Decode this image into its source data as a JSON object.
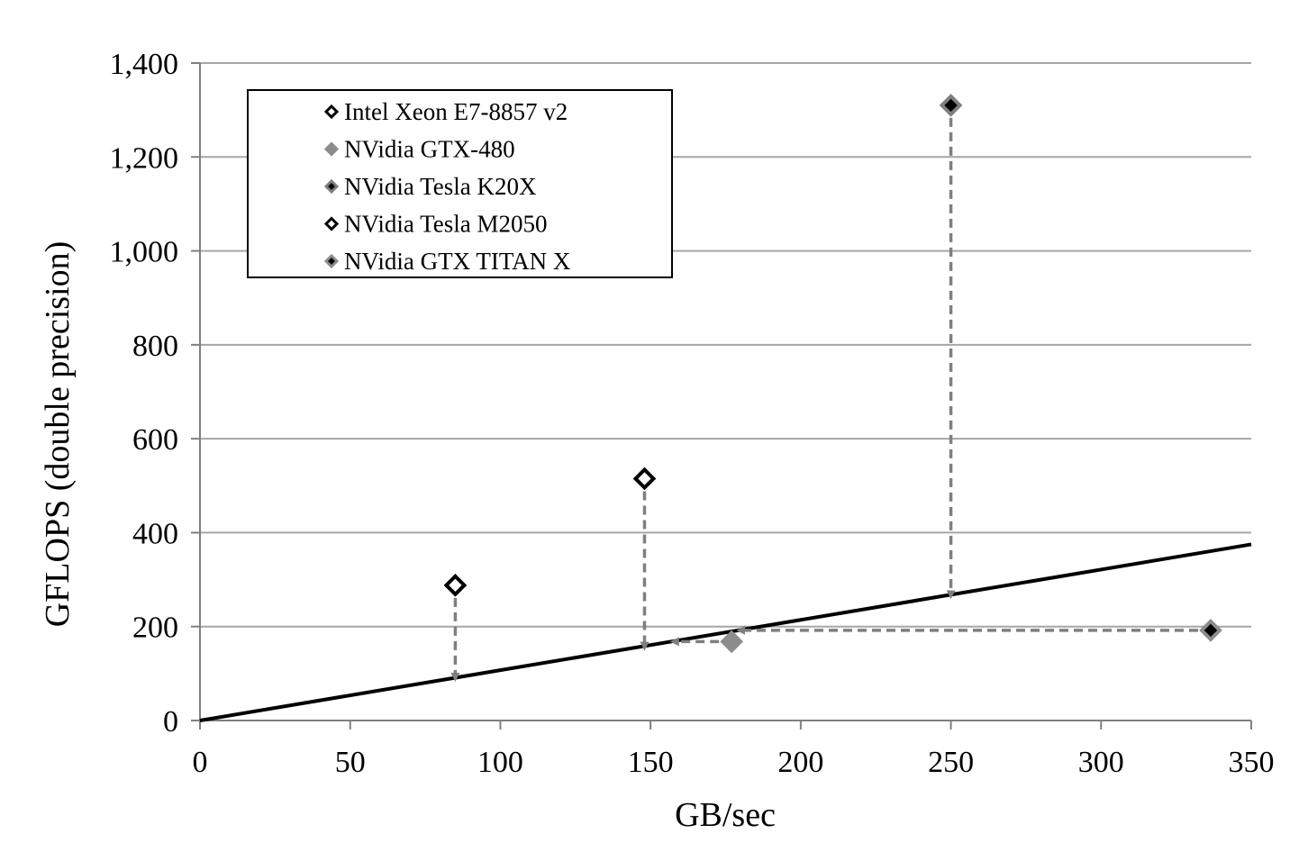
{
  "chart_data": {
    "type": "scatter",
    "title": "",
    "xlabel": "GB/sec",
    "ylabel": "GFLOPS (double precision)",
    "xlim": [
      0,
      350
    ],
    "ylim": [
      0,
      1400
    ],
    "x_ticks": [
      0,
      50,
      100,
      150,
      200,
      250,
      300,
      350
    ],
    "y_ticks": [
      0,
      200,
      400,
      600,
      800,
      1000,
      1200,
      1400
    ],
    "x_tick_labels": [
      "0",
      "50",
      "100",
      "150",
      "200",
      "250",
      "300",
      "350"
    ],
    "y_tick_labels": [
      "0",
      "200",
      "400",
      "600",
      "800",
      "1,000",
      "1,200",
      "1,400"
    ],
    "grid": "horizontal",
    "legend_position": "top-left",
    "series": [
      {
        "name": "Intel Xeon E7-8857 v2",
        "x": [
          85
        ],
        "y": [
          288
        ],
        "fill": "#ffffff",
        "stroke": "#000000"
      },
      {
        "name": "NVidia GTX-480",
        "x": [
          177
        ],
        "y": [
          168
        ],
        "fill": "#8c8c8c",
        "stroke": "#8c8c8c"
      },
      {
        "name": "NVidia Tesla K20X",
        "x": [
          250
        ],
        "y": [
          1310
        ],
        "fill": "#000000",
        "stroke": "#7f7f7f"
      },
      {
        "name": "NVidia Tesla M2050",
        "x": [
          148
        ],
        "y": [
          515
        ],
        "fill": "#ffffff",
        "stroke": "#000000"
      },
      {
        "name": "NVidia GTX TITAN X",
        "x": [
          336.5
        ],
        "y": [
          192
        ],
        "fill": "#000000",
        "stroke": "#8c8c8c"
      }
    ],
    "roofline": {
      "x": [
        0,
        350
      ],
      "y": [
        0,
        375
      ],
      "color": "#000000"
    },
    "arrows": [
      {
        "from": [
          85,
          288
        ],
        "to": [
          85,
          92
        ]
      },
      {
        "from": [
          148,
          515
        ],
        "to": [
          148,
          158
        ]
      },
      {
        "from": [
          250,
          1310
        ],
        "to": [
          250,
          268
        ]
      },
      {
        "from": [
          177,
          168
        ],
        "to": [
          158,
          168
        ]
      },
      {
        "from": [
          336.5,
          192
        ],
        "to": [
          180,
          192
        ]
      }
    ],
    "arrow_color": "#7f7f7f",
    "grid_color": "#a6a6a6"
  }
}
